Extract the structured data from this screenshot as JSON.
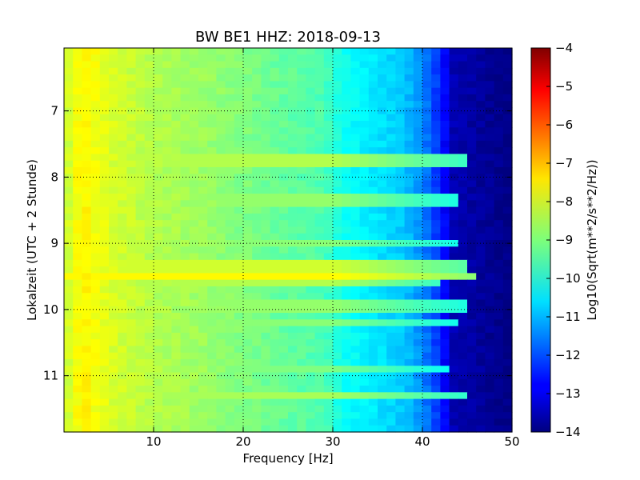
{
  "chart_data": {
    "type": "heatmap",
    "title": "BW BE1 HHZ: 2018-09-13",
    "xlabel": "Frequency [Hz]",
    "ylabel": "Lokalzeit (UTC + 2 Stunde)",
    "xlim": [
      0,
      50
    ],
    "ylim": [
      11.85,
      6.05
    ],
    "y_inverted": true,
    "grid": true,
    "x_ticks": [
      10,
      20,
      30,
      40,
      50
    ],
    "y_ticks": [
      7,
      8,
      9,
      10,
      11
    ],
    "colorbar": {
      "label": "Log10(Sqrt(m**2/s**2/Hz))",
      "colormap": "jet",
      "range": [
        -14,
        -4
      ],
      "ticks": [
        -4,
        -5,
        -6,
        -7,
        -8,
        -9,
        -10,
        -11,
        -12,
        -13,
        -14
      ]
    },
    "spectral_profile": [
      {
        "freq": 0,
        "value": -8.4
      },
      {
        "freq": 2,
        "value": -7.6
      },
      {
        "freq": 5,
        "value": -8.1
      },
      {
        "freq": 10,
        "value": -8.5
      },
      {
        "freq": 15,
        "value": -8.7
      },
      {
        "freq": 20,
        "value": -9.0
      },
      {
        "freq": 25,
        "value": -9.3
      },
      {
        "freq": 29,
        "value": -9.5
      },
      {
        "freq": 31,
        "value": -10.1
      },
      {
        "freq": 35,
        "value": -10.5
      },
      {
        "freq": 38,
        "value": -10.8
      },
      {
        "freq": 40,
        "value": -11.4
      },
      {
        "freq": 42,
        "value": -12.4
      },
      {
        "freq": 43.5,
        "value": -13.5
      },
      {
        "freq": 50,
        "value": -14.0
      }
    ],
    "bright_bands": [
      {
        "time": 7.75,
        "value": -8.5,
        "freq_end": 45
      },
      {
        "time": 7.82,
        "value": -8.7,
        "freq_end": 44
      },
      {
        "time": 8.34,
        "value": -8.8,
        "freq_end": 44
      },
      {
        "time": 9.04,
        "value": -8.9,
        "freq_end": 44
      },
      {
        "time": 9.35,
        "value": -8.2,
        "freq_end": 45
      },
      {
        "time": 9.46,
        "value": -7.7,
        "freq_end": 46
      },
      {
        "time": 9.55,
        "value": -8.5,
        "freq_end": 42
      },
      {
        "time": 9.95,
        "value": -8.8,
        "freq_end": 45
      },
      {
        "time": 10.24,
        "value": -8.9,
        "freq_end": 44
      },
      {
        "time": 10.94,
        "value": -9.0,
        "freq_end": 43
      },
      {
        "time": 11.28,
        "value": -8.6,
        "freq_end": 45
      }
    ]
  }
}
